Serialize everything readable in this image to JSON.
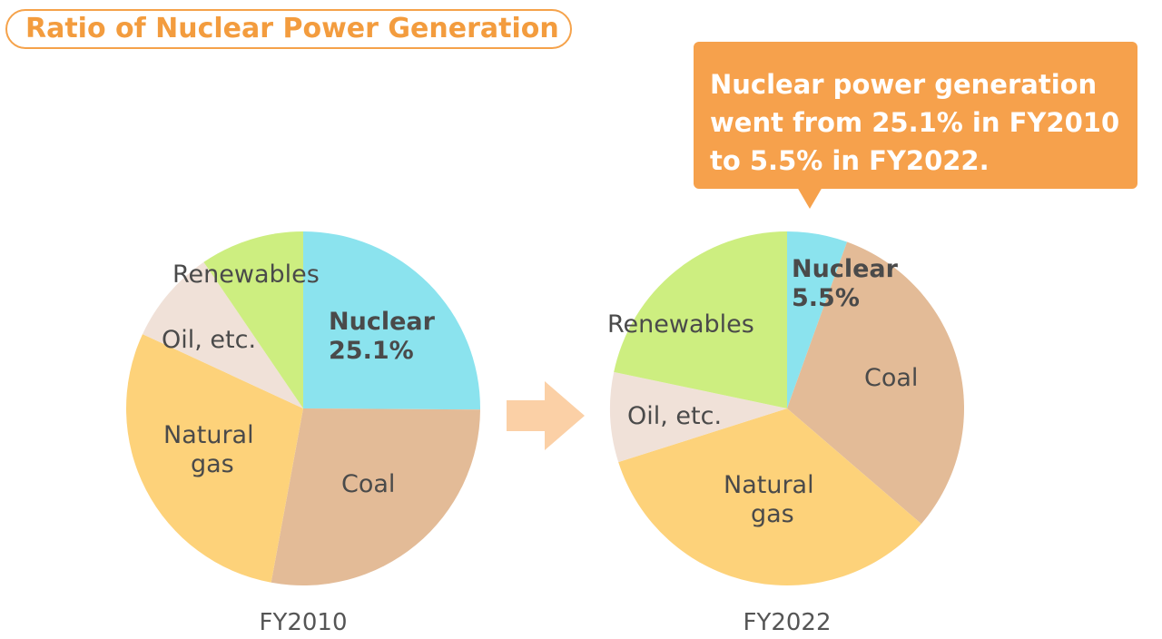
{
  "title": "Ratio of Nuclear Power Generation",
  "callout": {
    "lines": [
      "Nuclear power generation",
      "went from 25.1% in FY2010",
      "to 5.5% in FY2022."
    ]
  },
  "colors": {
    "accent": "#f39c3e",
    "callout_bg": "#f6a14c",
    "arrow": "#fbd0a6",
    "nuclear": "#8be3ee",
    "coal": "#e3bb97",
    "natural_gas": "#fdd27a",
    "oil": "#f0e1d8",
    "renewables": "#cdee80"
  },
  "chart_data": [
    {
      "type": "pie",
      "title": "FY2010",
      "start_angle_deg": 0,
      "direction": "clockwise",
      "slices": [
        {
          "name": "Nuclear",
          "label_lines": [
            "Nuclear",
            "25.1%"
          ],
          "value": 25.1,
          "color": "#8be3ee",
          "bold": true
        },
        {
          "name": "Coal",
          "label_lines": [
            "Coal"
          ],
          "value": 27.8,
          "color": "#e3bb97",
          "bold": false
        },
        {
          "name": "Natural gas",
          "label_lines": [
            "Natural",
            "gas"
          ],
          "value": 29.0,
          "color": "#fdd27a",
          "bold": false
        },
        {
          "name": "Oil, etc.",
          "label_lines": [
            "Oil, etc."
          ],
          "value": 8.6,
          "color": "#f0e1d8",
          "bold": false
        },
        {
          "name": "Renewables",
          "label_lines": [
            "Renewables"
          ],
          "value": 9.5,
          "color": "#cdee80",
          "bold": false
        }
      ]
    },
    {
      "type": "pie",
      "title": "FY2022",
      "start_angle_deg": 0,
      "direction": "clockwise",
      "slices": [
        {
          "name": "Nuclear",
          "label_lines": [
            "Nuclear",
            "5.5%"
          ],
          "value": 5.5,
          "color": "#8be3ee",
          "bold": true
        },
        {
          "name": "Coal",
          "label_lines": [
            "Coal"
          ],
          "value": 30.8,
          "color": "#e3bb97",
          "bold": false
        },
        {
          "name": "Natural gas",
          "label_lines": [
            "Natural",
            "gas"
          ],
          "value": 33.8,
          "color": "#fdd27a",
          "bold": false
        },
        {
          "name": "Oil, etc.",
          "label_lines": [
            "Oil, etc."
          ],
          "value": 8.2,
          "color": "#f0e1d8",
          "bold": false
        },
        {
          "name": "Renewables",
          "label_lines": [
            "Renewables"
          ],
          "value": 21.7,
          "color": "#cdee80",
          "bold": false
        }
      ]
    }
  ]
}
